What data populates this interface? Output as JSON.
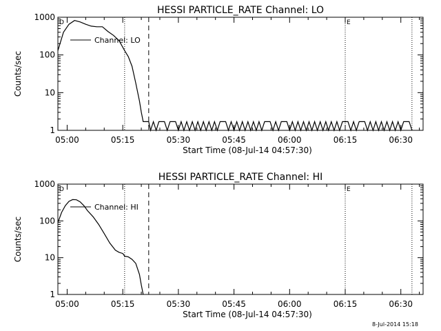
{
  "chart_data": [
    {
      "type": "line",
      "title": "HESSI PARTICLE_RATE Channel: LO",
      "xlabel": "Start Time (08-Jul-14 04:57:30)",
      "ylabel": "Counts/sec",
      "yscale": "log",
      "ylim": [
        1,
        1000
      ],
      "xlim": [
        "04:57:30",
        "06:36:00"
      ],
      "xticks": [
        "05:00",
        "05:15",
        "05:30",
        "05:45",
        "06:00",
        "06:15",
        "06:30"
      ],
      "yticks": [
        "1",
        "10",
        "100",
        "1000"
      ],
      "grid": false,
      "legend": {
        "placement": "top-left",
        "entries": [
          "Channel: LO"
        ]
      },
      "vlines": [
        {
          "x": "05:15:30",
          "style": "dotted"
        },
        {
          "x": "05:22:00",
          "style": "dashed"
        },
        {
          "x": "06:15:00",
          "style": "dotted",
          "marker": "E"
        },
        {
          "x": "06:33:00",
          "style": "dotted"
        }
      ],
      "start_marker": {
        "x": "04:57:30",
        "label": "D"
      },
      "series": [
        {
          "values_note": "",
          "x": [
            "04:57:30",
            "04:59:00",
            "05:00:30",
            "05:02:00",
            "05:03:30",
            "05:05:00",
            "05:06:30",
            "05:08:00",
            "05:09:30",
            "05:11:00",
            "05:12:30",
            "05:14:00",
            "05:15:30",
            "05:16:30",
            "05:17:30",
            "05:18:30",
            "05:19:30",
            "05:20:00",
            "05:20:30",
            "05:21:00",
            "05:22:00"
          ],
          "y": [
            130,
            400,
            650,
            820,
            750,
            650,
            580,
            560,
            560,
            420,
            330,
            240,
            130,
            90,
            50,
            18,
            6,
            3,
            1.7,
            1.7,
            1.7
          ]
        }
      ],
      "noise": {
        "from": "05:22:00",
        "to": "06:33:00",
        "low": 1,
        "high": 1.7
      }
    },
    {
      "type": "line",
      "title": "HESSI PARTICLE_RATE Channel: HI",
      "xlabel": "Start Time (08-Jul-14 04:57:30)",
      "ylabel": "Counts/sec",
      "yscale": "log",
      "ylim": [
        1,
        1000
      ],
      "xlim": [
        "04:57:30",
        "06:36:00"
      ],
      "xticks": [
        "05:00",
        "05:15",
        "05:30",
        "05:45",
        "06:00",
        "06:15",
        "06:30"
      ],
      "yticks": [
        "1",
        "10",
        "100",
        "1000"
      ],
      "grid": false,
      "legend": {
        "placement": "top-left",
        "entries": [
          "Channel: HI"
        ]
      },
      "vlines": [
        {
          "x": "05:15:30",
          "style": "dotted"
        },
        {
          "x": "05:22:00",
          "style": "dashed"
        },
        {
          "x": "06:15:00",
          "style": "dotted",
          "marker": "E"
        },
        {
          "x": "06:33:00",
          "style": "dotted"
        }
      ],
      "start_marker": {
        "x": "04:57:30",
        "label": "D"
      },
      "series": [
        {
          "x": [
            "04:57:30",
            "04:58:30",
            "04:59:30",
            "05:00:30",
            "05:01:30",
            "05:02:30",
            "05:03:30",
            "05:04:30",
            "05:05:30",
            "05:07:00",
            "05:08:30",
            "05:10:00",
            "05:11:30",
            "05:13:00",
            "05:14:00",
            "05:15:00",
            "05:15:30",
            "05:16:30",
            "05:17:30",
            "05:18:30",
            "05:19:30",
            "05:20:00",
            "05:20:30"
          ],
          "y": [
            90,
            170,
            260,
            340,
            380,
            375,
            330,
            260,
            190,
            130,
            80,
            45,
            25,
            16,
            14,
            13,
            11,
            10.5,
            9,
            7,
            3.5,
            1.8,
            1
          ]
        }
      ]
    }
  ],
  "footer": {
    "timestamp": "8-Jul-2014 15:18"
  }
}
